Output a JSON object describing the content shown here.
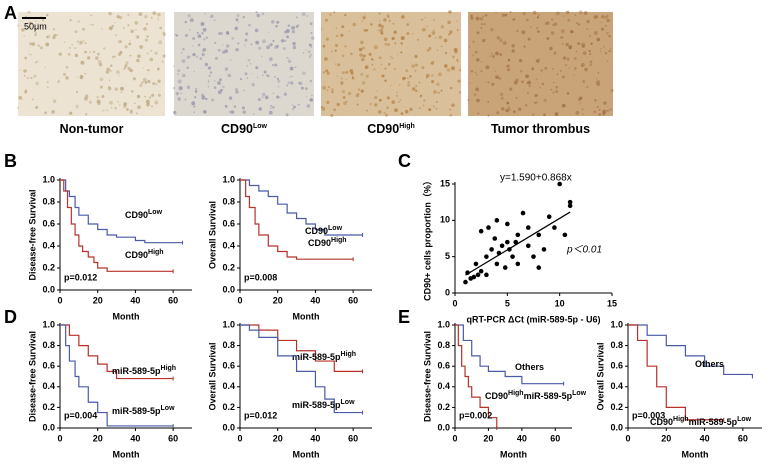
{
  "panel_labels": [
    "A",
    "B",
    "C",
    "D",
    "E"
  ],
  "images": {
    "scale_bar": "50μm",
    "labels": [
      [
        {
          "t": "Non-tumor"
        }
      ],
      [
        {
          "t": "CD90"
        },
        {
          "t": "Low",
          "sup": true
        }
      ],
      [
        {
          "t": "CD90"
        },
        {
          "t": "High",
          "sup": true
        }
      ],
      [
        {
          "t": "Tumor thrombus"
        }
      ]
    ]
  },
  "chart_data": [
    {
      "type": "km",
      "ylabel": "Disease-free Survival",
      "xlabel": "Month",
      "annotation": "p=0.012",
      "xlim": [
        0,
        70
      ],
      "xticks": [
        0,
        20,
        40,
        60
      ],
      "ylim": [
        0,
        1
      ],
      "yticks": [
        {
          "value": 0,
          "label": "0.0"
        },
        {
          "value": 0.2,
          "label": "0.2"
        },
        {
          "value": 0.4,
          "label": "0.4"
        },
        {
          "value": 0.6,
          "label": "0.6"
        },
        {
          "value": 0.8,
          "label": "0.8"
        },
        {
          "value": 1,
          "label": "1.0"
        }
      ],
      "series": [
        {
          "name": [
            {
              "t": "CD90"
            },
            {
              "t": "Low",
              "sup": true
            }
          ],
          "color": "#4a5aa6",
          "x": [
            0,
            3,
            5,
            8,
            10,
            15,
            20,
            25,
            30,
            40,
            45,
            65
          ],
          "values": [
            1,
            0.9,
            0.85,
            0.75,
            0.68,
            0.6,
            0.55,
            0.5,
            0.48,
            0.45,
            0.43,
            0.43
          ]
        },
        {
          "name": [
            {
              "t": "CD90"
            },
            {
              "t": "High",
              "sup": true
            }
          ],
          "color": "#b8322a",
          "x": [
            0,
            2,
            4,
            6,
            8,
            10,
            12,
            15,
            18,
            20,
            25,
            60
          ],
          "values": [
            1,
            0.9,
            0.75,
            0.6,
            0.5,
            0.4,
            0.35,
            0.3,
            0.25,
            0.2,
            0.17,
            0.17
          ]
        }
      ]
    },
    {
      "type": "km",
      "ylabel": "Overall Survival",
      "xlabel": "Month",
      "annotation": "p=0.008",
      "xlim": [
        0,
        70
      ],
      "xticks": [
        0,
        20,
        40,
        60
      ],
      "ylim": [
        0,
        1
      ],
      "yticks": [
        {
          "value": 0,
          "label": "0.0"
        },
        {
          "value": 0.2,
          "label": "0.2"
        },
        {
          "value": 0.4,
          "label": "0.4"
        },
        {
          "value": 0.6,
          "label": "0.6"
        },
        {
          "value": 0.8,
          "label": "0.8"
        },
        {
          "value": 1,
          "label": "1.0"
        }
      ],
      "series": [
        {
          "name": [
            {
              "t": "CD90"
            },
            {
              "t": "Low",
              "sup": true
            }
          ],
          "color": "#4a5aa6",
          "x": [
            0,
            5,
            10,
            15,
            20,
            25,
            30,
            35,
            40,
            45,
            65
          ],
          "values": [
            1,
            0.95,
            0.9,
            0.85,
            0.78,
            0.7,
            0.65,
            0.6,
            0.55,
            0.5,
            0.5
          ]
        },
        {
          "name": [
            {
              "t": "CD90"
            },
            {
              "t": "High",
              "sup": true
            }
          ],
          "color": "#b8322a",
          "x": [
            0,
            3,
            5,
            8,
            10,
            15,
            20,
            25,
            30,
            60
          ],
          "values": [
            1,
            0.85,
            0.75,
            0.6,
            0.5,
            0.4,
            0.35,
            0.3,
            0.28,
            0.28
          ]
        }
      ]
    },
    {
      "type": "scatter",
      "ylabel": "CD90+ cells proportion（%）",
      "xlabel": "qRT-PCR ΔCt (miR-589-5p - U6)",
      "annotations": [
        "y=1.590+0.868x",
        "p＜0.01"
      ],
      "fit": {
        "intercept": 1.59,
        "slope": 0.868
      },
      "xlim": [
        0,
        15
      ],
      "xticks": [
        0,
        5,
        10,
        15
      ],
      "ylim": [
        0,
        15
      ],
      "yticks": [
        0,
        5,
        10,
        15
      ],
      "color": "#000000",
      "x": [
        1,
        1.2,
        1.5,
        1.8,
        2,
        2.2,
        2.5,
        2.5,
        3,
        3,
        3.2,
        3.5,
        3.8,
        4,
        4,
        4.2,
        4.5,
        4.8,
        5,
        5,
        5.2,
        5.5,
        5.8,
        6,
        6,
        6.5,
        7,
        7,
        7.5,
        8,
        8,
        8.5,
        9,
        9.5,
        10,
        10.5,
        11,
        11
      ],
      "values": [
        1.5,
        2.8,
        2,
        2.2,
        4,
        2.5,
        3,
        8.5,
        5,
        2.5,
        9,
        6,
        7.5,
        4,
        10,
        5.5,
        6.5,
        3.5,
        7,
        9.5,
        6,
        5,
        7,
        4,
        8,
        11,
        6.5,
        9,
        5,
        3.5,
        8,
        6,
        10.5,
        9,
        15,
        8,
        12.5,
        12
      ]
    },
    {
      "type": "km",
      "ylabel": "Disease-free Survival",
      "xlabel": "Month",
      "annotation": "p=0.004",
      "xlim": [
        0,
        70
      ],
      "xticks": [
        0,
        20,
        40,
        60
      ],
      "ylim": [
        0,
        1
      ],
      "yticks": [
        {
          "value": 0,
          "label": "0.0"
        },
        {
          "value": 0.2,
          "label": "0.2"
        },
        {
          "value": 0.4,
          "label": "0.4"
        },
        {
          "value": 0.6,
          "label": "0.6"
        },
        {
          "value": 0.8,
          "label": "0.8"
        },
        {
          "value": 1,
          "label": "1.0"
        }
      ],
      "series": [
        {
          "name": [
            {
              "t": "miR-589-5p"
            },
            {
              "t": "High",
              "sup": true
            }
          ],
          "color": "#b8322a",
          "x": [
            0,
            5,
            10,
            15,
            20,
            25,
            30,
            60
          ],
          "values": [
            1,
            0.9,
            0.8,
            0.7,
            0.62,
            0.55,
            0.48,
            0.48
          ]
        },
        {
          "name": [
            {
              "t": "miR-589-5p"
            },
            {
              "t": "Low",
              "sup": true
            }
          ],
          "color": "#4a5aa6",
          "x": [
            0,
            3,
            5,
            8,
            10,
            15,
            20,
            25,
            60
          ],
          "values": [
            1,
            0.8,
            0.65,
            0.5,
            0.4,
            0.25,
            0.15,
            0.02,
            0.02
          ]
        }
      ]
    },
    {
      "type": "km",
      "ylabel": "Overall Survival",
      "xlabel": "Month",
      "annotation": "p=0.012",
      "xlim": [
        0,
        70
      ],
      "xticks": [
        0,
        20,
        40,
        60
      ],
      "ylim": [
        0,
        1
      ],
      "yticks": [
        {
          "value": 0,
          "label": "0.0"
        },
        {
          "value": 0.2,
          "label": "0.2"
        },
        {
          "value": 0.4,
          "label": "0.4"
        },
        {
          "value": 0.6,
          "label": "0.6"
        },
        {
          "value": 0.8,
          "label": "0.8"
        },
        {
          "value": 1,
          "label": "1.0"
        }
      ],
      "series": [
        {
          "name": [
            {
              "t": "miR-589-5p"
            },
            {
              "t": "High",
              "sup": true
            }
          ],
          "color": "#b8322a",
          "x": [
            0,
            10,
            20,
            30,
            40,
            50,
            65
          ],
          "values": [
            1,
            0.95,
            0.85,
            0.75,
            0.65,
            0.55,
            0.55
          ]
        },
        {
          "name": [
            {
              "t": "miR-589-5p"
            },
            {
              "t": "Low",
              "sup": true
            }
          ],
          "color": "#4a5aa6",
          "x": [
            0,
            5,
            10,
            20,
            30,
            40,
            45,
            50,
            65
          ],
          "values": [
            1,
            0.95,
            0.88,
            0.7,
            0.55,
            0.4,
            0.28,
            0.15,
            0.15
          ]
        }
      ]
    },
    {
      "type": "km",
      "ylabel": "Disease-free Survival",
      "xlabel": "Month",
      "annotation": "p=0.002",
      "xlim": [
        0,
        70
      ],
      "xticks": [
        0,
        20,
        40,
        60
      ],
      "ylim": [
        0,
        1
      ],
      "yticks": [
        {
          "value": 0,
          "label": "0.0"
        },
        {
          "value": 0.2,
          "label": "0.2"
        },
        {
          "value": 0.4,
          "label": "0.4"
        },
        {
          "value": 0.6,
          "label": "0.6"
        },
        {
          "value": 0.8,
          "label": "0.8"
        },
        {
          "value": 1,
          "label": "1.0"
        }
      ],
      "series": [
        {
          "name": [
            {
              "t": "Others"
            }
          ],
          "color": "#4a5aa6",
          "x": [
            0,
            5,
            10,
            15,
            20,
            30,
            40,
            65
          ],
          "values": [
            1,
            0.85,
            0.7,
            0.6,
            0.55,
            0.5,
            0.43,
            0.43
          ]
        },
        {
          "name": [
            {
              "t": "CD90"
            },
            {
              "t": "High",
              "sup": true
            },
            {
              "t": "miR-589-5p"
            },
            {
              "t": "Low",
              "sup": true
            }
          ],
          "color": "#b8322a",
          "x": [
            0,
            2,
            4,
            6,
            8,
            10,
            15,
            20,
            25
          ],
          "values": [
            1,
            0.8,
            0.6,
            0.5,
            0.4,
            0.3,
            0.2,
            0.1,
            0
          ]
        }
      ]
    },
    {
      "type": "km",
      "ylabel": "Overall Survival",
      "xlabel": "Month",
      "annotation": "p=0.003",
      "xlim": [
        0,
        70
      ],
      "xticks": [
        0,
        20,
        40,
        60
      ],
      "ylim": [
        0,
        1
      ],
      "yticks": [
        {
          "value": 0,
          "label": "0.0"
        },
        {
          "value": 0.2,
          "label": "0.2"
        },
        {
          "value": 0.4,
          "label": "0.4"
        },
        {
          "value": 0.6,
          "label": "0.6"
        },
        {
          "value": 0.8,
          "label": "0.8"
        },
        {
          "value": 1,
          "label": "1.0"
        }
      ],
      "series": [
        {
          "name": [
            {
              "t": "Others"
            }
          ],
          "color": "#4a5aa6",
          "x": [
            0,
            10,
            20,
            30,
            40,
            50,
            65
          ],
          "values": [
            1,
            0.9,
            0.8,
            0.7,
            0.6,
            0.52,
            0.5
          ]
        },
        {
          "name": [
            {
              "t": "CD90"
            },
            {
              "t": "High",
              "sup": true
            },
            {
              "t": "miR-589-5p"
            },
            {
              "t": "Low",
              "sup": true
            }
          ],
          "color": "#b8322a",
          "x": [
            0,
            5,
            10,
            15,
            20,
            30,
            50
          ],
          "values": [
            1,
            0.85,
            0.6,
            0.4,
            0.2,
            0.08,
            0.08
          ]
        }
      ]
    }
  ]
}
